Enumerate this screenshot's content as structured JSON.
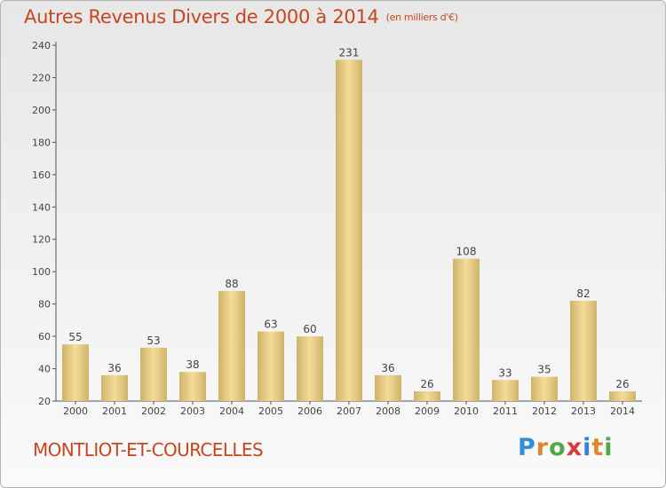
{
  "title": "Autres Revenus Divers de 2000 à 2014",
  "unit_note": "(en milliers d'€)",
  "commune": "MONTLIOT-ET-COURCELLES",
  "brand": {
    "text": "Proxiti",
    "colors": [
      "#2e8fd6",
      "#e0872a",
      "#4fa84a",
      "#d83a3a",
      "#3a7fd6",
      "#e0872a",
      "#4fa84a"
    ]
  },
  "colors": {
    "accent": "#c8461e",
    "bar_light": "#f5dc9a",
    "bar_dark": "#cfb36a"
  },
  "chart_data": {
    "type": "bar",
    "categories": [
      "2000",
      "2001",
      "2002",
      "2003",
      "2004",
      "2005",
      "2006",
      "2007",
      "2008",
      "2009",
      "2010",
      "2011",
      "2012",
      "2013",
      "2014"
    ],
    "values": [
      55,
      36,
      53,
      38,
      88,
      63,
      60,
      231,
      36,
      26,
      108,
      33,
      35,
      82,
      26
    ],
    "ylim": [
      20,
      240
    ],
    "yticks": [
      20,
      40,
      60,
      80,
      100,
      120,
      140,
      160,
      180,
      200,
      220,
      240
    ],
    "grid": false
  }
}
